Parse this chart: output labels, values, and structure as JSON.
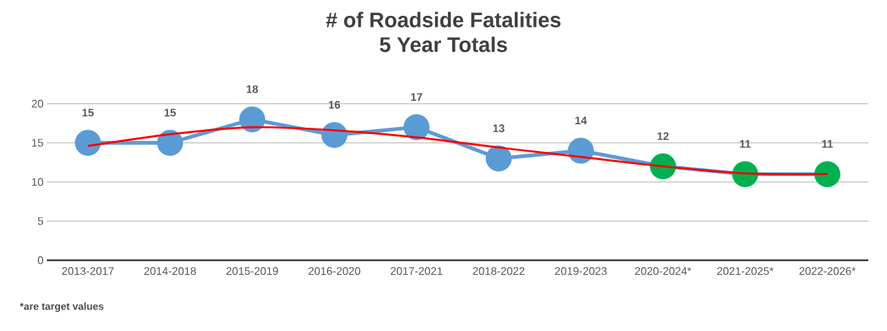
{
  "chart_data": {
    "type": "line",
    "title": "# of Roadside Fatalities",
    "subtitle": "5 Year Totals",
    "categories": [
      "2013-2017",
      "2014-2018",
      "2015-2019",
      "2016-2020",
      "2017-2021",
      "2018-2022",
      "2019-2023",
      "2020-2024*",
      "2021-2025*",
      "2022-2026*"
    ],
    "series": [
      {
        "color": "#5b9bd5",
        "marker": "circle",
        "values": [
          15,
          15,
          18,
          16,
          17,
          13,
          14,
          12,
          11,
          11
        ],
        "colors": [
          "#5b9bd5",
          "#5b9bd5",
          "#5b9bd5",
          "#5b9bd5",
          "#5b9bd5",
          "#5b9bd5",
          "#5b9bd5",
          "#00b050",
          "#00b050",
          "#00b050"
        ],
        "value_labels": [
          "15",
          "15",
          "18",
          "16",
          "17",
          "13",
          "14",
          "12",
          "11",
          "11"
        ]
      },
      {
        "color": "#ff0000",
        "marker": "none",
        "values": [
          14.6,
          16.1,
          17.0,
          16.6,
          15.7,
          14.4,
          13.2,
          12.0,
          11.1,
          11.0
        ]
      }
    ],
    "ylim": [
      0,
      20
    ],
    "yticks": [
      0,
      5,
      10,
      15,
      20
    ],
    "grid": "y",
    "annotations": [
      "*are target values"
    ]
  }
}
